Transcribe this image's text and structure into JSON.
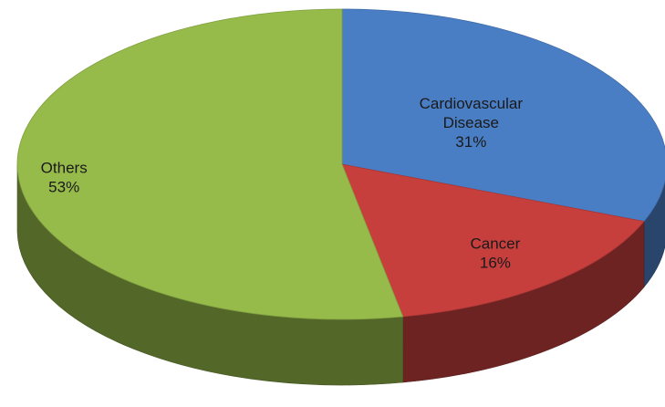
{
  "chart_data": {
    "type": "pie",
    "style": "3d",
    "slices": [
      {
        "label": "Cardiovascular Disease",
        "label_lines": [
          "Cardiovascular",
          "Disease"
        ],
        "value": 31,
        "value_label": "31%",
        "color": "#4a7ec4"
      },
      {
        "label": "Cancer",
        "label_lines": [
          "Cancer"
        ],
        "value": 16,
        "value_label": "16%",
        "color": "#c63f3d"
      },
      {
        "label": "Others",
        "label_lines": [
          "Others"
        ],
        "value": 53,
        "value_label": "53%",
        "color": "#96bb4b"
      }
    ]
  }
}
